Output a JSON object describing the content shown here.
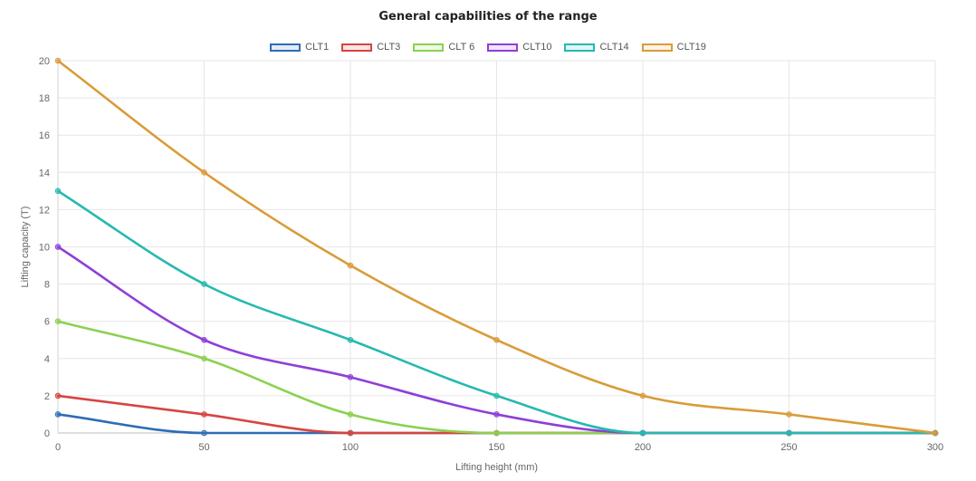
{
  "chart_data": {
    "type": "line",
    "title": "General capabilities of the range",
    "xlabel": "Lifting height (mm)",
    "ylabel": "Lifting capacity (T)",
    "x": [
      0,
      50,
      100,
      150,
      200,
      250,
      300
    ],
    "xlim": [
      0,
      300
    ],
    "ylim": [
      0,
      20
    ],
    "xticks": [
      "0",
      "50",
      "100",
      "150",
      "200",
      "250",
      "300"
    ],
    "yticks": [
      "0",
      "2",
      "4",
      "6",
      "8",
      "10",
      "12",
      "14",
      "16",
      "18",
      "20"
    ],
    "grid": true,
    "legend": "top-center",
    "series": [
      {
        "name": "CLT1",
        "color": "#2e6db4",
        "values": [
          1,
          0,
          0,
          0,
          0,
          0,
          0
        ]
      },
      {
        "name": "CLT3",
        "color": "#d64541",
        "values": [
          2,
          1,
          0,
          0,
          0,
          0,
          0
        ]
      },
      {
        "name": "CLT 6",
        "color": "#8bd14f",
        "values": [
          6,
          4,
          1,
          0,
          0,
          0,
          0
        ]
      },
      {
        "name": "CLT10",
        "color": "#8e3fd8",
        "values": [
          10,
          5,
          3,
          1,
          0,
          0,
          0
        ]
      },
      {
        "name": "CLT14",
        "color": "#27b9b1",
        "values": [
          13,
          8,
          5,
          2,
          0,
          0,
          0
        ]
      },
      {
        "name": "CLT19",
        "color": "#d99c3a",
        "values": [
          20,
          14,
          9,
          5,
          2,
          1,
          0
        ]
      }
    ]
  }
}
